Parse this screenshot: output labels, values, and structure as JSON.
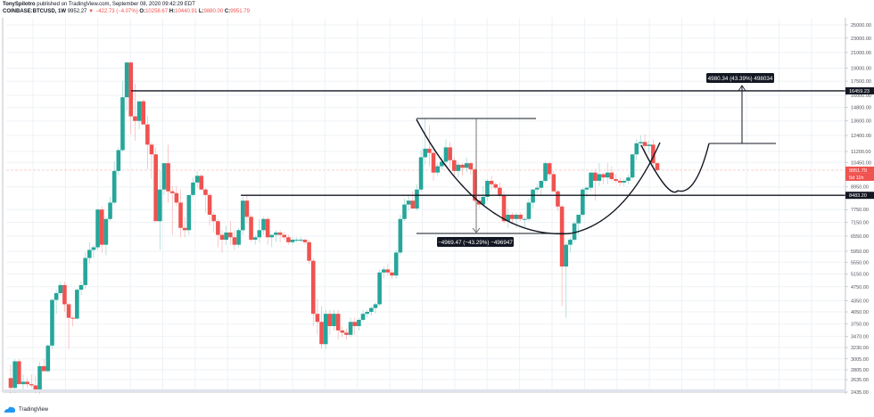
{
  "header": {
    "line1": {
      "author": "TonySpilotro",
      "rest": " published on TradingView.com, September 08, 2020 09:42:29 EDT"
    },
    "line2": {
      "symbol": "COINBASE:BTCUSD, 1W",
      "last": "9952.27",
      "arrow": "▼",
      "change": "−422.73 (−4.07%)",
      "o_label": "O:",
      "o": "10258.67",
      "h_label": "H:",
      "h": "10440.91",
      "l_label": "L:",
      "l": "9880.00",
      "c_label": "C:",
      "c": "9951.79"
    }
  },
  "footer": {
    "brand": "TradingView"
  },
  "colors": {
    "up": "#26a69a",
    "down": "#ef5350",
    "grid": "#eef2f6",
    "line": "#131722"
  },
  "chart_data": {
    "type": "candlestick",
    "title": "COINBASE:BTCUSD, 1W",
    "xlabel": "",
    "ylabel": "",
    "x_ticks": [
      "Jul",
      "Sep",
      "Nov",
      "2018",
      "Mar",
      "May",
      "Jul",
      "Sep",
      "Nov",
      "2019",
      "Mar",
      "May",
      "Jul",
      "Sep",
      "Nov",
      "2020",
      "Mar",
      "May",
      "Jul",
      "Sep",
      "Nov",
      "2021",
      "Mar",
      "May",
      "Jul"
    ],
    "y_ticks": [
      "25000.00",
      "23000.00",
      "21000.00",
      "19000.00",
      "17500.00",
      "16000.00",
      "14800.00",
      "13600.00",
      "12400.00",
      "11200.00",
      "10450.00",
      "8950.00",
      "7750.00",
      "7150.00",
      "6550.00",
      "5950.00",
      "5550.00",
      "5150.00",
      "4750.00",
      "4350.00",
      "4050.00",
      "3750.00",
      "3470.00",
      "3230.00",
      "3005.00",
      "2805.00",
      "2635.00",
      "2435.00"
    ],
    "price_labels": [
      {
        "value": "16459.23",
        "style": "dark"
      },
      {
        "value": "9951.79",
        "style": "red"
      },
      {
        "value": "5d 11h",
        "style": "red"
      },
      {
        "value": "8483.20",
        "style": "dark"
      }
    ],
    "ylim": [
      2435,
      25000
    ],
    "scale": "log",
    "horizontal_levels": [
      16459.23,
      8483.2
    ],
    "annotations": [
      {
        "type": "measure-up",
        "text": "4980.34 (43.39%) 498034"
      },
      {
        "type": "measure-down",
        "text": "−4969.47 (−43.29%) −496947"
      },
      {
        "type": "pattern",
        "text": "cup and handle"
      }
    ],
    "last_close": 9951.79
  },
  "candles": [
    [
      2660,
      2900,
      2400,
      2500
    ],
    [
      2500,
      3000,
      2420,
      2960
    ],
    [
      2960,
      3000,
      2560,
      2560
    ],
    [
      2560,
      2720,
      2480,
      2600
    ],
    [
      2600,
      2660,
      2500,
      2560
    ],
    [
      2560,
      2720,
      2500,
      2540
    ],
    [
      2540,
      2700,
      2420,
      2440
    ],
    [
      2440,
      2950,
      2400,
      2870
    ],
    [
      2870,
      3000,
      2800,
      2780
    ],
    [
      2780,
      3300,
      2760,
      3270
    ],
    [
      3270,
      4400,
      3200,
      4370
    ],
    [
      4370,
      4650,
      4000,
      4560
    ],
    [
      4560,
      4900,
      4500,
      4800
    ],
    [
      4800,
      4900,
      4050,
      4250
    ],
    [
      4250,
      4300,
      3200,
      3900
    ],
    [
      3900,
      3950,
      3700,
      3880
    ],
    [
      3880,
      4700,
      3860,
      4660
    ],
    [
      4660,
      4900,
      4500,
      4800
    ],
    [
      4800,
      5900,
      4700,
      5700
    ],
    [
      5700,
      6300,
      5500,
      6000
    ],
    [
      6000,
      6200,
      5700,
      6100
    ],
    [
      6100,
      7800,
      6000,
      7750
    ],
    [
      7750,
      7900,
      5900,
      6200
    ],
    [
      6200,
      7400,
      5800,
      7300
    ],
    [
      7300,
      8400,
      7200,
      8100
    ],
    [
      8100,
      10500,
      8000,
      9900
    ],
    [
      9900,
      11500,
      9600,
      11300
    ],
    [
      11300,
      17500,
      11200,
      15800
    ],
    [
      15800,
      19800,
      14500,
      19700
    ],
    [
      19700,
      19800,
      12500,
      14000
    ],
    [
      14000,
      17200,
      12000,
      13600
    ],
    [
      13600,
      15000,
      12900,
      15400
    ],
    [
      15400,
      15600,
      13300,
      13300
    ],
    [
      13300,
      14000,
      10000,
      11700
    ],
    [
      11700,
      11900,
      9400,
      11000
    ],
    [
      11000,
      11500,
      7600,
      7200
    ],
    [
      7200,
      9900,
      6000,
      8800
    ],
    [
      8800,
      10000,
      8500,
      10400
    ],
    [
      10400,
      11700,
      8100,
      8700
    ],
    [
      8700,
      9000,
      6600,
      8600
    ],
    [
      8600,
      9000,
      7900,
      8100
    ],
    [
      8100,
      8800,
      6500,
      6900
    ],
    [
      6900,
      7400,
      6500,
      6800
    ],
    [
      6800,
      8300,
      6600,
      8500
    ],
    [
      8500,
      9500,
      8400,
      9200
    ],
    [
      9200,
      9900,
      8900,
      9600
    ],
    [
      9600,
      9700,
      8800,
      8800
    ],
    [
      8800,
      8900,
      7600,
      8500
    ],
    [
      8500,
      8600,
      7000,
      7500
    ],
    [
      7500,
      7600,
      6700,
      7200
    ],
    [
      7200,
      7300,
      6100,
      6600
    ],
    [
      6600,
      6800,
      5900,
      6400
    ],
    [
      6400,
      7000,
      6200,
      6700
    ],
    [
      6700,
      7200,
      6200,
      6500
    ],
    [
      6500,
      6800,
      6000,
      6200
    ],
    [
      6200,
      6900,
      6100,
      6800
    ],
    [
      6800,
      8400,
      6600,
      8200
    ],
    [
      8200,
      8500,
      7100,
      7400
    ],
    [
      7400,
      7500,
      6300,
      6400
    ],
    [
      6400,
      6600,
      6200,
      6500
    ],
    [
      6500,
      7300,
      6300,
      6800
    ],
    [
      6800,
      7400,
      6600,
      7300
    ],
    [
      7300,
      7400,
      6200,
      6500
    ],
    [
      6500,
      6600,
      6100,
      6600
    ],
    [
      6600,
      6800,
      6300,
      6700
    ],
    [
      6700,
      6800,
      6300,
      6600
    ],
    [
      6600,
      6700,
      6400,
      6500
    ],
    [
      6500,
      6600,
      6200,
      6300
    ],
    [
      6300,
      6500,
      6200,
      6400
    ],
    [
      6400,
      6500,
      6300,
      6400
    ],
    [
      6400,
      6500,
      6300,
      6400
    ],
    [
      6400,
      6450,
      6200,
      6300
    ],
    [
      6300,
      6400,
      5500,
      5600
    ],
    [
      5600,
      5700,
      3700,
      4000
    ],
    [
      4000,
      4400,
      3500,
      3800
    ],
    [
      3800,
      4200,
      3200,
      3300
    ],
    [
      3300,
      4100,
      3200,
      4000
    ],
    [
      4000,
      4100,
      3500,
      3700
    ],
    [
      3700,
      4100,
      3600,
      4000
    ],
    [
      4000,
      4100,
      3400,
      3600
    ],
    [
      3600,
      3700,
      3450,
      3550
    ],
    [
      3550,
      3650,
      3400,
      3500
    ],
    [
      3500,
      3900,
      3450,
      3800
    ],
    [
      3800,
      3900,
      3500,
      3700
    ],
    [
      3700,
      3900,
      3600,
      3850
    ],
    [
      3850,
      4100,
      3800,
      4000
    ],
    [
      4000,
      4100,
      3900,
      4050
    ],
    [
      4050,
      4200,
      3950,
      4150
    ],
    [
      4150,
      4300,
      4000,
      4250
    ],
    [
      4250,
      5300,
      4200,
      5200
    ],
    [
      5200,
      5400,
      5000,
      5300
    ],
    [
      5300,
      5500,
      5100,
      5200
    ],
    [
      5200,
      5300,
      5000,
      5100
    ],
    [
      5100,
      6000,
      5000,
      5900
    ],
    [
      5900,
      7500,
      5800,
      7300
    ],
    [
      7300,
      8300,
      7200,
      8000
    ],
    [
      8000,
      8500,
      7700,
      8200
    ],
    [
      8200,
      8700,
      7900,
      7800
    ],
    [
      7800,
      9100,
      7700,
      8800
    ],
    [
      8800,
      11300,
      8700,
      10800
    ],
    [
      10800,
      13800,
      10300,
      11400
    ],
    [
      11400,
      13200,
      10200,
      11100
    ],
    [
      11100,
      11600,
      9300,
      9800
    ],
    [
      9800,
      10400,
      9600,
      10200
    ],
    [
      10200,
      10900,
      10000,
      10500
    ],
    [
      10500,
      12100,
      10200,
      11500
    ],
    [
      11500,
      11900,
      10100,
      10600
    ],
    [
      10600,
      10800,
      9500,
      9900
    ],
    [
      9900,
      10500,
      9500,
      10300
    ],
    [
      10300,
      10400,
      9600,
      10100
    ],
    [
      10100,
      10800,
      9800,
      10400
    ],
    [
      10400,
      10500,
      9700,
      10000
    ],
    [
      10000,
      10100,
      8100,
      8200
    ],
    [
      8200,
      8500,
      7800,
      8000
    ],
    [
      8000,
      9000,
      7900,
      8400
    ],
    [
      8400,
      9400,
      8200,
      9300
    ],
    [
      9300,
      9600,
      8800,
      9100
    ],
    [
      9100,
      9200,
      8800,
      8900
    ],
    [
      8900,
      9200,
      8300,
      8500
    ],
    [
      8500,
      8700,
      7100,
      7200
    ],
    [
      7200,
      7800,
      6900,
      7500
    ],
    [
      7500,
      7600,
      7100,
      7300
    ],
    [
      7300,
      7600,
      6900,
      7500
    ],
    [
      7500,
      7600,
      7200,
      7300
    ],
    [
      7300,
      7400,
      6900,
      7300
    ],
    [
      7300,
      8300,
      7200,
      8100
    ],
    [
      8100,
      8400,
      7800,
      8800
    ],
    [
      8800,
      9100,
      8600,
      8900
    ],
    [
      8900,
      9200,
      8500,
      9300
    ],
    [
      9300,
      10500,
      9200,
      10400
    ],
    [
      10400,
      10500,
      9400,
      9700
    ],
    [
      9700,
      9900,
      8600,
      8700
    ],
    [
      8700,
      8800,
      7700,
      7900
    ],
    [
      7900,
      8000,
      4200,
      5400
    ],
    [
      5400,
      6300,
      3900,
      6200
    ],
    [
      6200,
      6500,
      5900,
      6400
    ],
    [
      6400,
      7200,
      6300,
      7100
    ],
    [
      7100,
      7500,
      6600,
      7500
    ],
    [
      7500,
      8900,
      7400,
      8800
    ],
    [
      8800,
      9000,
      8400,
      8900
    ],
    [
      8900,
      9800,
      8700,
      9800
    ],
    [
      9800,
      10000,
      8200,
      9300
    ],
    [
      9300,
      10400,
      9000,
      9700
    ],
    [
      9700,
      9800,
      9100,
      9500
    ],
    [
      9500,
      10400,
      9100,
      9800
    ],
    [
      9800,
      10200,
      9300,
      9400
    ],
    [
      9400,
      9700,
      9200,
      9300
    ],
    [
      9300,
      9500,
      9000,
      9200
    ],
    [
      9200,
      9400,
      9000,
      9300
    ],
    [
      9300,
      9700,
      9100,
      9500
    ],
    [
      9500,
      10900,
      9400,
      11000
    ],
    [
      11000,
      12100,
      10600,
      11800
    ],
    [
      11800,
      12400,
      11500,
      11900
    ],
    [
      11900,
      12500,
      11000,
      11600
    ],
    [
      11600,
      12000,
      11100,
      11700
    ],
    [
      11700,
      12100,
      10000,
      10400
    ],
    [
      10400,
      10500,
      9900,
      9952
    ]
  ]
}
